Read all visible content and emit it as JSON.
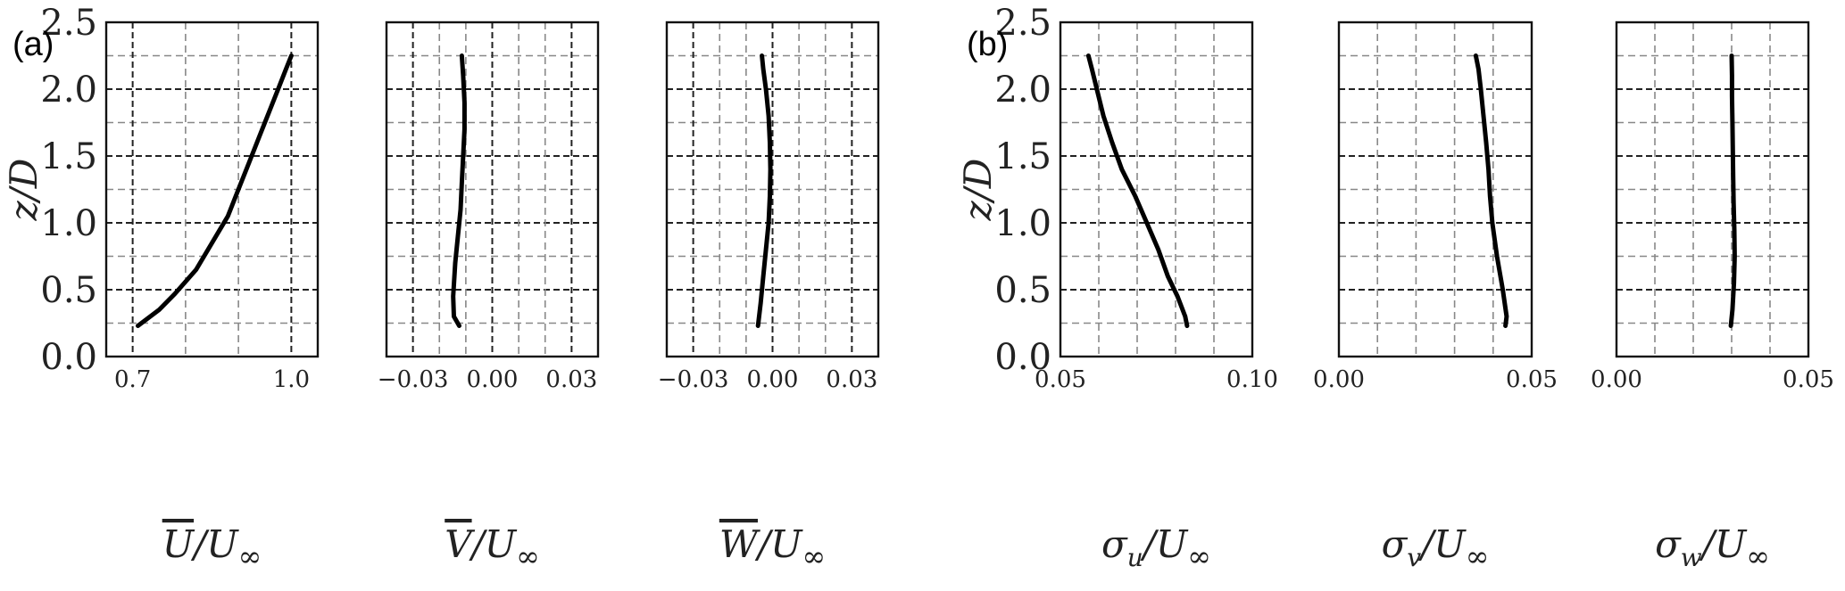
{
  "chart_data": [
    {
      "type": "line",
      "panel_label": "(a)",
      "xlabel": {
        "main": "U",
        "overline": true,
        "sub": "",
        "denom": "/U",
        "denom_sub": "∞"
      },
      "ylabel": "z/D",
      "xlim": [
        0.65,
        1.05
      ],
      "ylim": [
        0,
        2.5
      ],
      "xticks": [
        0.7,
        1.0
      ],
      "xtick_labels": [
        "0.7",
        "1.0"
      ],
      "xgrid": [
        0.7,
        0.8,
        0.9,
        1.0
      ],
      "yticks": [
        0,
        0.5,
        1.0,
        1.5,
        2.0,
        2.5
      ],
      "ytick_labels": [
        "0.0",
        "0.5",
        "1.0",
        "1.5",
        "2.0",
        "2.5"
      ],
      "grid": true,
      "series": [
        {
          "x": [
            0.71,
            0.75,
            0.78,
            0.82,
            0.85,
            0.88,
            0.9,
            0.92,
            0.94,
            0.96,
            0.975,
            0.99,
            1.0
          ],
          "y": [
            0.23,
            0.35,
            0.47,
            0.65,
            0.85,
            1.05,
            1.25,
            1.45,
            1.65,
            1.85,
            2.0,
            2.15,
            2.25
          ]
        }
      ]
    },
    {
      "type": "line",
      "xlabel": {
        "main": "V",
        "overline": true,
        "sub": "",
        "denom": "/U",
        "denom_sub": "∞"
      },
      "xlim": [
        -0.04,
        0.04
      ],
      "ylim": [
        0,
        2.5
      ],
      "xticks": [
        -0.03,
        0.0,
        0.03
      ],
      "xtick_labels": [
        "−0.03",
        "0.00",
        "0.03"
      ],
      "xgrid": [
        -0.03,
        -0.02,
        -0.01,
        0.0,
        0.01,
        0.02,
        0.03
      ],
      "yticks": [
        0,
        0.5,
        1.0,
        1.5,
        2.0,
        2.5
      ],
      "grid": true,
      "series": [
        {
          "x": [
            -0.0125,
            -0.0145,
            -0.0148,
            -0.014,
            -0.013,
            -0.012,
            -0.0115,
            -0.011,
            -0.0105,
            -0.0105,
            -0.011,
            -0.0115
          ],
          "y": [
            0.23,
            0.3,
            0.45,
            0.7,
            0.9,
            1.1,
            1.3,
            1.5,
            1.7,
            1.9,
            2.1,
            2.25
          ]
        }
      ]
    },
    {
      "type": "line",
      "xlabel": {
        "main": "W",
        "overline": true,
        "sub": "",
        "denom": "/U",
        "denom_sub": "∞"
      },
      "xlim": [
        -0.04,
        0.04
      ],
      "ylim": [
        0,
        2.5
      ],
      "xticks": [
        -0.03,
        0.0,
        0.03
      ],
      "xtick_labels": [
        "−0.03",
        "0.00",
        "0.03"
      ],
      "xgrid": [
        -0.03,
        -0.02,
        -0.01,
        0.0,
        0.01,
        0.02,
        0.03
      ],
      "yticks": [
        0,
        0.5,
        1.0,
        1.5,
        2.0,
        2.5
      ],
      "grid": true,
      "series": [
        {
          "x": [
            -0.0055,
            -0.0045,
            -0.0035,
            -0.0025,
            -0.0015,
            -0.001,
            -0.0008,
            -0.001,
            -0.0015,
            -0.0025,
            -0.0035,
            -0.004
          ],
          "y": [
            0.23,
            0.4,
            0.6,
            0.8,
            1.0,
            1.2,
            1.4,
            1.6,
            1.8,
            2.0,
            2.15,
            2.25
          ]
        }
      ]
    },
    {
      "type": "line",
      "panel_label": "(b)",
      "xlabel": {
        "main": "σ",
        "overline": false,
        "sub": "u",
        "denom": "/U",
        "denom_sub": "∞"
      },
      "ylabel": "z/D",
      "xlim": [
        0.05,
        0.1
      ],
      "ylim": [
        0,
        2.5
      ],
      "xticks": [
        0.05,
        0.1
      ],
      "xtick_labels": [
        "0.05",
        "0.10"
      ],
      "xgrid": [
        0.06,
        0.07,
        0.08,
        0.09
      ],
      "yticks": [
        0,
        0.5,
        1.0,
        1.5,
        2.0,
        2.5
      ],
      "ytick_labels": [
        "0.0",
        "0.5",
        "1.0",
        "1.5",
        "2.0",
        "2.5"
      ],
      "grid": true,
      "series": [
        {
          "x": [
            0.083,
            0.0825,
            0.0805,
            0.078,
            0.0755,
            0.0725,
            0.0695,
            0.066,
            0.0635,
            0.0612,
            0.0595,
            0.0582,
            0.0573
          ],
          "y": [
            0.23,
            0.3,
            0.45,
            0.6,
            0.8,
            1.0,
            1.2,
            1.4,
            1.6,
            1.8,
            2.0,
            2.15,
            2.25
          ]
        }
      ]
    },
    {
      "type": "line",
      "xlabel": {
        "main": "σ",
        "overline": false,
        "sub": "v",
        "denom": "/U",
        "denom_sub": "∞"
      },
      "xlim": [
        0.0,
        0.05
      ],
      "ylim": [
        0,
        2.5
      ],
      "xticks": [
        0.0,
        0.05
      ],
      "xtick_labels": [
        "0.00",
        "0.05"
      ],
      "xgrid": [
        0.01,
        0.02,
        0.03,
        0.04
      ],
      "yticks": [
        0,
        0.5,
        1.0,
        1.5,
        2.0,
        2.5
      ],
      "grid": true,
      "series": [
        {
          "x": [
            0.0432,
            0.0435,
            0.0425,
            0.041,
            0.0398,
            0.0392,
            0.0388,
            0.0382,
            0.0375,
            0.0368,
            0.0362,
            0.0355
          ],
          "y": [
            0.23,
            0.3,
            0.5,
            0.75,
            1.0,
            1.2,
            1.4,
            1.6,
            1.8,
            2.0,
            2.15,
            2.25
          ]
        }
      ]
    },
    {
      "type": "line",
      "xlabel": {
        "main": "σ",
        "overline": false,
        "sub": "w",
        "denom": "/U",
        "denom_sub": "∞"
      },
      "xlim": [
        0.0,
        0.05
      ],
      "ylim": [
        0,
        2.5
      ],
      "xticks": [
        0.0,
        0.05
      ],
      "xtick_labels": [
        "0.00",
        "0.05"
      ],
      "xgrid": [
        0.01,
        0.02,
        0.03,
        0.04
      ],
      "yticks": [
        0,
        0.5,
        1.0,
        1.5,
        2.0,
        2.5
      ],
      "grid": true,
      "series": [
        {
          "x": [
            0.0298,
            0.0302,
            0.0306,
            0.0308,
            0.0307,
            0.0305,
            0.0304,
            0.0303,
            0.0302,
            0.0301,
            0.0301,
            0.03
          ],
          "y": [
            0.23,
            0.35,
            0.55,
            0.75,
            0.95,
            1.15,
            1.35,
            1.55,
            1.75,
            1.95,
            2.1,
            2.25
          ]
        }
      ]
    }
  ]
}
